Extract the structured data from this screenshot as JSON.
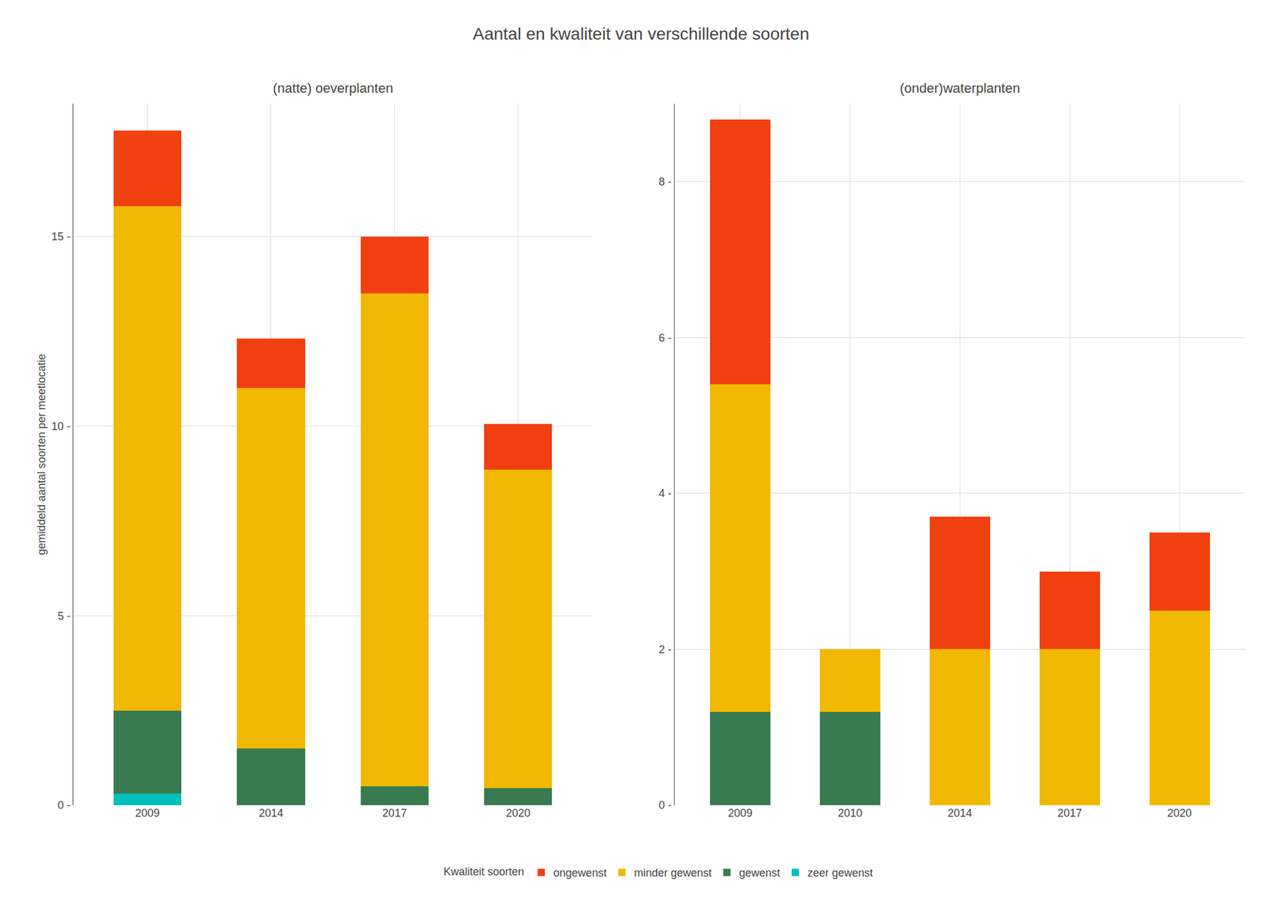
{
  "title": "Aantal en kwaliteit van verschillende soorten",
  "legend_title": "Kwaliteit soorten",
  "chart_data": [
    {
      "type": "bar",
      "stacked": true,
      "grid": true,
      "legend": "bottom",
      "subtitle": "(natte) oeverplanten",
      "ylabel": "gemiddeld aantal soorten per meetlocatie",
      "categories": [
        "2009",
        "2014",
        "2017",
        "2020"
      ],
      "series": [
        {
          "name": "zeer gewenst",
          "color": "#00BEBE",
          "values": [
            0.3,
            0.0,
            0.0,
            0.0
          ]
        },
        {
          "name": "gewenst",
          "color": "#3A7A50",
          "values": [
            2.2,
            1.5,
            0.5,
            0.45
          ]
        },
        {
          "name": "minder gewenst",
          "color": "#F0B800",
          "values": [
            13.3,
            9.5,
            13.0,
            8.4
          ]
        },
        {
          "name": "ongewenst",
          "color": "#F04010",
          "values": [
            2.0,
            1.3,
            1.5,
            1.2
          ]
        }
      ],
      "ylim": [
        0,
        18.5
      ],
      "yticks": [
        {
          "value": 0,
          "label": "0 -"
        },
        {
          "value": 5,
          "label": "5 -"
        },
        {
          "value": 10,
          "label": "10 -"
        },
        {
          "value": 15,
          "label": "15 -"
        }
      ]
    },
    {
      "type": "bar",
      "stacked": true,
      "grid": true,
      "legend": "bottom",
      "subtitle": "(onder)waterplanten",
      "categories": [
        "2009",
        "2010",
        "2014",
        "2017",
        "2020"
      ],
      "series": [
        {
          "name": "zeer gewenst",
          "color": "#00BEBE",
          "values": [
            0.0,
            0.0,
            0.0,
            0.0,
            0.0
          ]
        },
        {
          "name": "gewenst",
          "color": "#3A7A50",
          "values": [
            1.2,
            1.2,
            0.0,
            0.0,
            0.0
          ]
        },
        {
          "name": "minder gewenst",
          "color": "#F0B800",
          "values": [
            4.2,
            0.8,
            2.0,
            2.0,
            2.5
          ]
        },
        {
          "name": "ongewenst",
          "color": "#F04010",
          "values": [
            3.4,
            0.0,
            1.7,
            1.0,
            1.0
          ]
        }
      ],
      "ylim": [
        0,
        9.0
      ],
      "yticks": [
        {
          "value": 0,
          "label": "0 -"
        },
        {
          "value": 2,
          "label": "2 -"
        },
        {
          "value": 4,
          "label": "4 -"
        },
        {
          "value": 6,
          "label": "6 -"
        },
        {
          "value": 8,
          "label": "8 -"
        }
      ]
    }
  ]
}
